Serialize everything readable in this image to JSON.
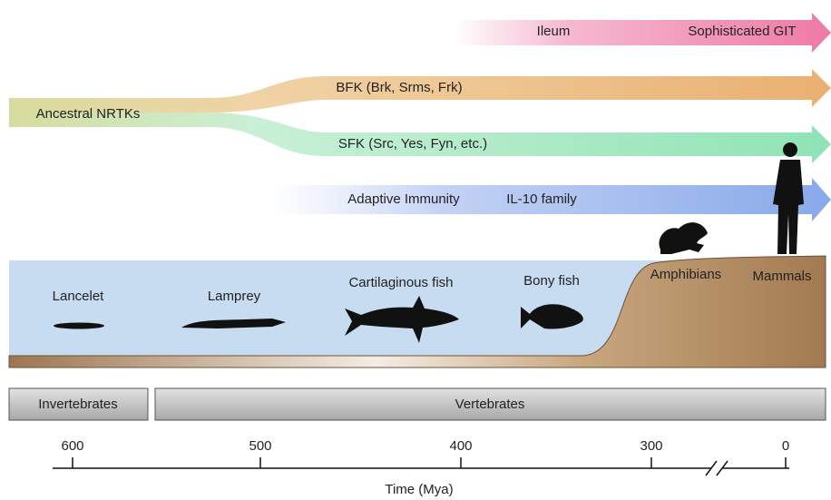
{
  "arrows": [
    {
      "labels": [
        "Ileum",
        "Sophisticated GIT"
      ]
    },
    {
      "labels": [
        "BFK (Brk, Srms, Frk)"
      ]
    },
    {
      "labels": [
        "SFK (Src, Yes, Fyn, etc.)"
      ]
    },
    {
      "labels": [
        "Adaptive Immunity",
        "IL-10 family"
      ]
    }
  ],
  "origin": "Ancestral NRTKs",
  "organisms": [
    "Lancelet",
    "Lamprey",
    "Cartilaginous fish",
    "Bony fish",
    "Amphibians",
    "Mammals"
  ],
  "groups": [
    "Invertebrates",
    "Vertebrates"
  ],
  "timeline": {
    "ticks": [
      "600",
      "500",
      "400",
      "300",
      "0"
    ],
    "title": "Time (Mya)"
  }
}
